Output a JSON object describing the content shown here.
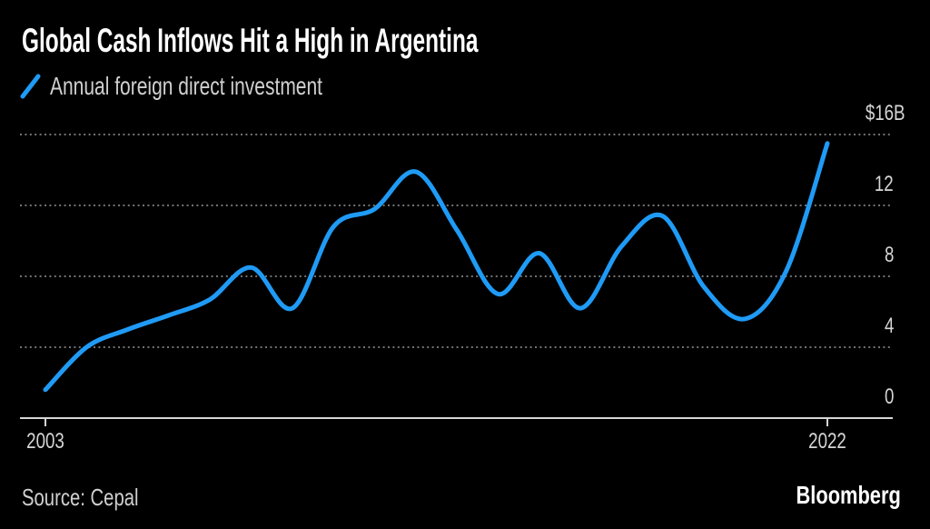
{
  "title": "Global Cash Inflows Hit a High in Argentina",
  "legend_label": "Annual foreign direct investment",
  "footer": {
    "source": "Source: Cepal",
    "brand": "Bloomberg"
  },
  "colors": {
    "background": "#000000",
    "accent": "#1f9bf6",
    "title_text": "#ffffff",
    "muted_text": "#d0d0d0",
    "tick_text": "#d6d6d6",
    "grid": "#727272",
    "axis": "#d6d6d6"
  },
  "chart_data": {
    "type": "line",
    "title": "Global Cash Inflows Hit a High in Argentina",
    "legend": [
      "Annual foreign direct investment"
    ],
    "legend_position": "top-left",
    "unit": "billions of US dollars",
    "x": [
      2003,
      2004,
      2005,
      2006,
      2007,
      2008,
      2009,
      2010,
      2011,
      2012,
      2013,
      2014,
      2015,
      2016,
      2017,
      2018,
      2019,
      2020,
      2021,
      2022
    ],
    "values": [
      1.6,
      4.0,
      5.0,
      5.8,
      6.7,
      8.5,
      6.2,
      10.8,
      11.8,
      13.9,
      10.6,
      7.0,
      9.3,
      6.2,
      9.7,
      11.4,
      7.4,
      5.6,
      8.3,
      15.5
    ],
    "ylim": [
      0,
      16
    ],
    "y_ticks": [
      {
        "prefix": "$",
        "label": "16",
        "suffix": "B",
        "value": 16
      },
      {
        "prefix": "",
        "label": "12",
        "suffix": "",
        "value": 12
      },
      {
        "prefix": "",
        "label": "8",
        "suffix": "",
        "value": 8
      },
      {
        "prefix": "",
        "label": "4",
        "suffix": "",
        "value": 4
      },
      {
        "prefix": "",
        "label": "0",
        "suffix": "",
        "value": 0
      }
    ],
    "x_ticks": [
      {
        "label": "2003",
        "value": 2003
      },
      {
        "label": "2022",
        "value": 2022
      }
    ],
    "grid": "horizontal dotted",
    "line_smoothing": "spline",
    "source": "Cepal"
  }
}
